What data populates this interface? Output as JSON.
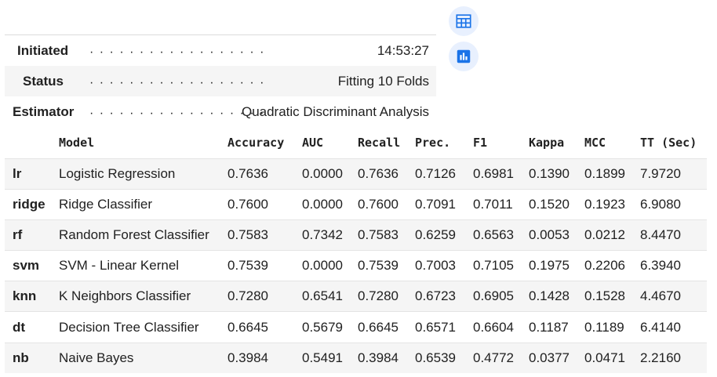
{
  "status": {
    "rows": [
      {
        "label": "Initiated",
        "dots": "· · · · · · · · · · · · · · · · · ·",
        "value": "14:53:27"
      },
      {
        "label": "Status",
        "dots": "· · · · · · · · · · · · · · · · · ·",
        "value": "Fitting 10 Folds"
      },
      {
        "label": "Estimator",
        "dots": "· · · · · · · · · · · · · · · · · ·",
        "value": "Quadratic Discriminant Analysis"
      }
    ]
  },
  "toolbar": {
    "table_icon": "table-icon",
    "chart_icon": "bar-chart-icon",
    "accent": "#1a73e8",
    "button_bg": "#e8f0fe"
  },
  "results": {
    "headers": [
      "",
      "Model",
      "Accuracy",
      "AUC",
      "Recall",
      "Prec.",
      "F1",
      "Kappa",
      "MCC",
      "TT (Sec)"
    ],
    "rows": [
      [
        "lr",
        "Logistic Regression",
        "0.7636",
        "0.0000",
        "0.7636",
        "0.7126",
        "0.6981",
        "0.1390",
        "0.1899",
        "7.9720"
      ],
      [
        "ridge",
        "Ridge Classifier",
        "0.7600",
        "0.0000",
        "0.7600",
        "0.7091",
        "0.7011",
        "0.1520",
        "0.1923",
        "6.9080"
      ],
      [
        "rf",
        "Random Forest Classifier",
        "0.7583",
        "0.7342",
        "0.7583",
        "0.6259",
        "0.6563",
        "0.0053",
        "0.0212",
        "8.4470"
      ],
      [
        "svm",
        "SVM - Linear Kernel",
        "0.7539",
        "0.0000",
        "0.7539",
        "0.7003",
        "0.7105",
        "0.1975",
        "0.2206",
        "6.3940"
      ],
      [
        "knn",
        "K Neighbors Classifier",
        "0.7280",
        "0.6541",
        "0.7280",
        "0.6723",
        "0.6905",
        "0.1428",
        "0.1528",
        "4.4670"
      ],
      [
        "dt",
        "Decision Tree Classifier",
        "0.6645",
        "0.5679",
        "0.6645",
        "0.6571",
        "0.6604",
        "0.1187",
        "0.1189",
        "6.4140"
      ],
      [
        "nb",
        "Naive Bayes",
        "0.3984",
        "0.5491",
        "0.3984",
        "0.6539",
        "0.4772",
        "0.0377",
        "0.0471",
        "2.2160"
      ]
    ]
  }
}
